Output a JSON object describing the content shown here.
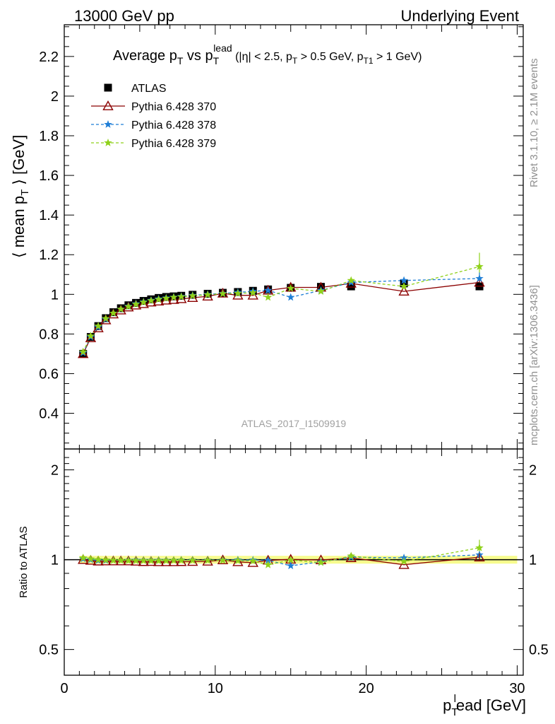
{
  "header": {
    "left": "13000 GeV pp",
    "right": "Underlying Event"
  },
  "side_labels": {
    "rivet": "Rivet 3.1.10, ≥ 2.1M events",
    "mcplots": "mcplots.cern.ch [arXiv:1306.3436]"
  },
  "chart_data": [
    {
      "type": "scatter",
      "panel": "main",
      "title": {
        "main": "Average p",
        "sub1": "T",
        "vs": " vs p",
        "sub2": "T",
        "sup2": "lead",
        "cut": " (|η| < 2.5, p",
        "cut_sub": "T",
        "cut2": " > 0.5 GeV, p",
        "cut2_sub": "T1",
        "cut3": " > 1 GeV)"
      },
      "ylabel": {
        "pre": "⟨ mean p",
        "sub": "T",
        "post": " ⟩ [GeV]"
      },
      "watermark": "ATLAS_2017_I1509919",
      "xlim": [
        0,
        30.4
      ],
      "ylim": [
        0.22,
        2.36
      ],
      "ytick_labels": [
        "0.4",
        "0.6",
        "0.8",
        "1",
        "1.2",
        "1.4",
        "1.6",
        "1.8",
        "2",
        "2.2"
      ],
      "legend_position": "top-left",
      "series": [
        {
          "name": "ATLAS",
          "style": "data",
          "color": "#000000",
          "x": [
            1.25,
            1.75,
            2.25,
            2.75,
            3.25,
            3.75,
            4.25,
            4.75,
            5.25,
            5.75,
            6.25,
            6.75,
            7.25,
            7.75,
            8.5,
            9.5,
            10.5,
            11.5,
            12.5,
            13.5,
            15,
            17,
            19,
            22.5,
            27.5
          ],
          "y": [
            0.7,
            0.785,
            0.84,
            0.88,
            0.91,
            0.93,
            0.945,
            0.957,
            0.967,
            0.975,
            0.982,
            0.987,
            0.99,
            0.993,
            0.998,
            1.003,
            1.008,
            1.012,
            1.018,
            1.025,
            1.033,
            1.038,
            1.04,
            1.055,
            1.04
          ]
        },
        {
          "name": "Pythia 6.428 370",
          "style": "triangle",
          "color": "#8b0000",
          "x": [
            1.25,
            1.75,
            2.25,
            2.75,
            3.25,
            3.75,
            4.25,
            4.75,
            5.25,
            5.75,
            6.25,
            6.75,
            7.25,
            7.75,
            8.5,
            9.5,
            10.5,
            11.5,
            12.5,
            13.5,
            15,
            17,
            19,
            22.5,
            27.5
          ],
          "y": [
            0.7,
            0.78,
            0.83,
            0.87,
            0.9,
            0.92,
            0.935,
            0.945,
            0.952,
            0.96,
            0.965,
            0.97,
            0.973,
            0.977,
            0.983,
            0.99,
            1.005,
            0.995,
            0.995,
            1.02,
            1.035,
            1.035,
            1.055,
            1.015,
            1.06
          ]
        },
        {
          "name": "Pythia 6.428 378",
          "style": "star",
          "color": "#1f7ed6",
          "x": [
            1.25,
            1.75,
            2.25,
            2.75,
            3.25,
            3.75,
            4.25,
            4.75,
            5.25,
            5.75,
            6.25,
            6.75,
            7.25,
            7.75,
            8.5,
            9.5,
            10.5,
            11.5,
            12.5,
            13.5,
            15,
            17,
            19,
            22.5,
            27.5
          ],
          "y": [
            0.705,
            0.785,
            0.835,
            0.875,
            0.905,
            0.925,
            0.94,
            0.953,
            0.962,
            0.97,
            0.977,
            0.982,
            0.986,
            0.99,
            0.995,
            1.0,
            1.005,
            1.01,
            1.015,
            1.02,
            0.985,
            1.02,
            1.06,
            1.07,
            1.08
          ]
        },
        {
          "name": "Pythia 6.428 379",
          "style": "star",
          "color": "#8fd11a",
          "x": [
            1.25,
            1.75,
            2.25,
            2.75,
            3.25,
            3.75,
            4.25,
            4.75,
            5.25,
            5.75,
            6.25,
            6.75,
            7.25,
            7.75,
            8.5,
            9.5,
            10.5,
            11.5,
            12.5,
            13.5,
            15,
            17,
            19,
            22.5,
            27.5
          ],
          "y": [
            0.71,
            0.79,
            0.84,
            0.878,
            0.905,
            0.925,
            0.938,
            0.95,
            0.96,
            0.968,
            0.974,
            0.98,
            0.985,
            0.988,
            0.993,
            0.998,
            1.003,
            1.005,
            1.008,
            0.985,
            1.03,
            1.015,
            1.07,
            1.04,
            1.14
          ]
        }
      ]
    },
    {
      "type": "scatter",
      "panel": "ratio",
      "ylabel": "Ratio to ATLAS",
      "xlabel": {
        "pre": "p",
        "sub": "T",
        "sup": "l",
        "post": "ead [GeV]"
      },
      "xlim": [
        0,
        30.4
      ],
      "ylim_log": [
        0.41,
        2.35
      ],
      "ytick_labels": [
        "0.5",
        "1",
        "2"
      ],
      "xtick_labels": [
        "0",
        "10",
        "20",
        "30"
      ],
      "band_color": "#f4fb68",
      "series": [
        {
          "name": "Pythia 6.428 370",
          "color": "#8b0000",
          "style": "triangle",
          "y": [
            1.0,
            0.994,
            0.988,
            0.989,
            0.989,
            0.989,
            0.989,
            0.987,
            0.984,
            0.985,
            0.983,
            0.983,
            0.983,
            0.984,
            0.985,
            0.987,
            0.997,
            0.983,
            0.977,
            0.995,
            1.002,
            0.997,
            1.014,
            0.962,
            1.019
          ]
        },
        {
          "name": "Pythia 6.428 378",
          "color": "#1f7ed6",
          "style": "star",
          "y": [
            1.007,
            1.0,
            0.994,
            0.994,
            0.995,
            0.995,
            0.995,
            0.996,
            0.995,
            0.995,
            0.995,
            0.995,
            0.996,
            0.997,
            0.997,
            0.997,
            0.997,
            0.998,
            0.997,
            0.995,
            0.954,
            0.983,
            1.019,
            1.014,
            1.038
          ]
        },
        {
          "name": "Pythia 6.428 379",
          "color": "#8fd11a",
          "style": "star",
          "y": [
            1.014,
            1.006,
            1.0,
            0.998,
            0.995,
            0.995,
            0.993,
            0.993,
            0.993,
            0.993,
            0.992,
            0.993,
            0.995,
            0.995,
            0.995,
            0.995,
            0.995,
            0.993,
            0.99,
            0.961,
            0.997,
            0.978,
            1.029,
            0.986,
            1.096
          ]
        }
      ]
    }
  ]
}
